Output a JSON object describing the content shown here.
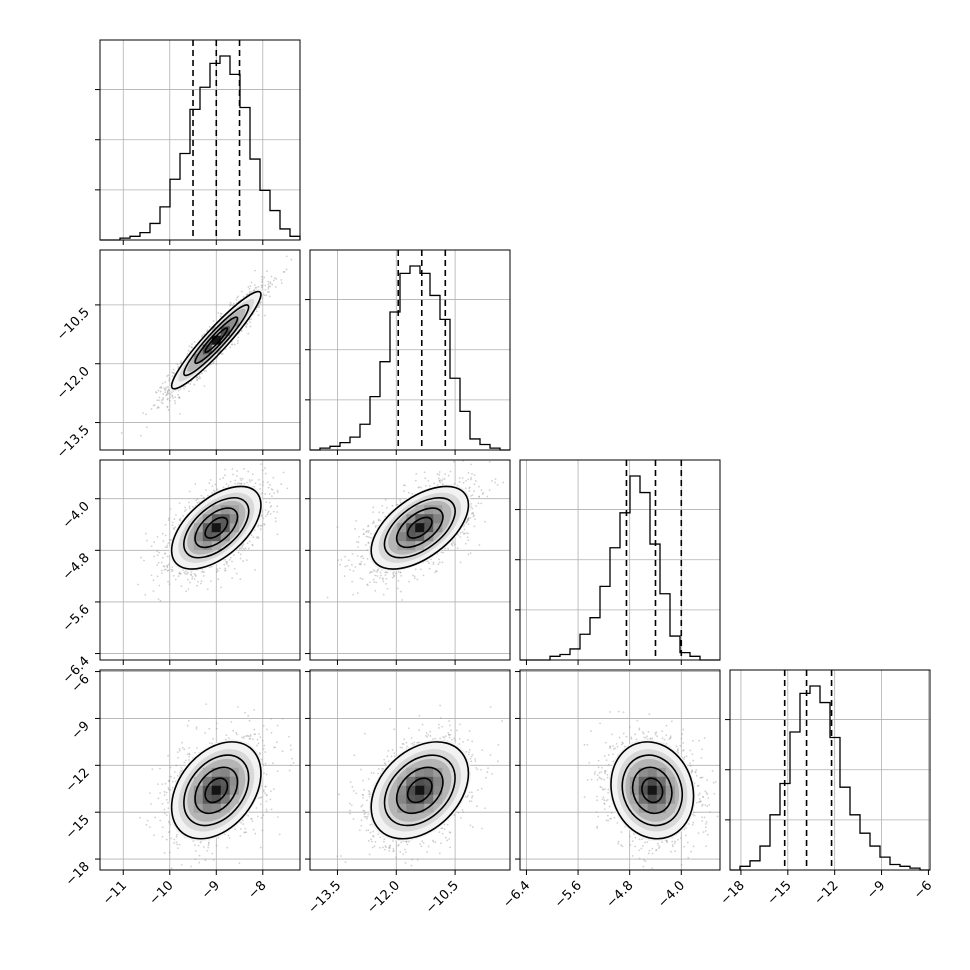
{
  "chart_data": {
    "type": "corner",
    "title": "",
    "parameters": [
      {
        "index": 0,
        "range": [
          -11.5,
          -7.2
        ],
        "ticks": [
          -11,
          -10,
          -9,
          -8
        ],
        "tick_labels": [
          "−11",
          "−10",
          "−9",
          "−8"
        ],
        "quantiles": [
          -9.5,
          -9.0,
          -8.5
        ],
        "hist_bins": [
          0.0,
          0.0,
          0.01,
          0.02,
          0.04,
          0.09,
          0.18,
          0.33,
          0.47,
          0.71,
          0.83,
          0.96,
          1.0,
          0.9,
          0.72,
          0.44,
          0.27,
          0.16,
          0.06,
          0.02
        ]
      },
      {
        "index": 1,
        "range": [
          -14.2,
          -9.1
        ],
        "ticks": [
          -13.5,
          -12.0,
          -10.5
        ],
        "tick_labels": [
          "−13.5",
          "−12.0",
          "−10.5"
        ],
        "quantiles": [
          -11.95,
          -11.35,
          -10.75
        ],
        "hist_bins": [
          0.0,
          0.01,
          0.02,
          0.04,
          0.07,
          0.14,
          0.29,
          0.48,
          0.75,
          0.96,
          1.0,
          0.96,
          0.84,
          0.71,
          0.39,
          0.21,
          0.06,
          0.03,
          0.01,
          0.0
        ]
      },
      {
        "index": 2,
        "range": [
          -6.5,
          -3.4
        ],
        "ticks": [
          -6.4,
          -5.6,
          -4.8,
          -4.0
        ],
        "tick_labels": [
          "−6.4",
          "−5.6",
          "−4.8",
          "−4.0"
        ],
        "quantiles": [
          -4.85,
          -4.4,
          -4.0
        ],
        "hist_bins": [
          0.0,
          0.0,
          0.0,
          0.02,
          0.03,
          0.06,
          0.14,
          0.23,
          0.4,
          0.61,
          0.8,
          1.0,
          0.91,
          0.63,
          0.36,
          0.13,
          0.04,
          0.02,
          0.0,
          0.0
        ]
      },
      {
        "index": 3,
        "range": [
          -18.7,
          -5.9
        ],
        "ticks": [
          -18,
          -15,
          -12,
          -9,
          -6
        ],
        "tick_labels": [
          "−18",
          "−15",
          "−12",
          "−9",
          "−6"
        ],
        "quantiles": [
          -15.2,
          -13.8,
          -12.2
        ],
        "hist_bins": [
          0.0,
          0.02,
          0.05,
          0.13,
          0.3,
          0.47,
          0.75,
          0.96,
          1.0,
          0.91,
          0.72,
          0.45,
          0.3,
          0.2,
          0.13,
          0.07,
          0.03,
          0.02,
          0.01,
          0.0
        ]
      }
    ],
    "pairs": [
      {
        "x": 0,
        "y": 1,
        "center": [
          -9.0,
          -11.4
        ],
        "sigma": [
          0.48,
          0.62
        ],
        "rho": 0.94
      },
      {
        "x": 0,
        "y": 2,
        "center": [
          -9.0,
          -4.45
        ],
        "sigma": [
          0.48,
          0.32
        ],
        "rho": 0.55
      },
      {
        "x": 1,
        "y": 2,
        "center": [
          -11.4,
          -4.45
        ],
        "sigma": [
          0.62,
          0.32
        ],
        "rho": 0.55
      },
      {
        "x": 0,
        "y": 3,
        "center": [
          -9.0,
          -13.6
        ],
        "sigma": [
          0.48,
          1.55
        ],
        "rho": 0.35
      },
      {
        "x": 1,
        "y": 3,
        "center": [
          -11.4,
          -13.6
        ],
        "sigma": [
          0.62,
          1.55
        ],
        "rho": 0.35
      },
      {
        "x": 2,
        "y": 3,
        "center": [
          -4.45,
          -13.6
        ],
        "sigma": [
          0.32,
          1.55
        ],
        "rho": -0.12
      }
    ],
    "contour_levels": [
      "0.5-sigma",
      "1-sigma",
      "1.5-sigma",
      "2-sigma"
    ],
    "grid": true,
    "legend": "none",
    "xlabel": "",
    "ylabel": ""
  }
}
